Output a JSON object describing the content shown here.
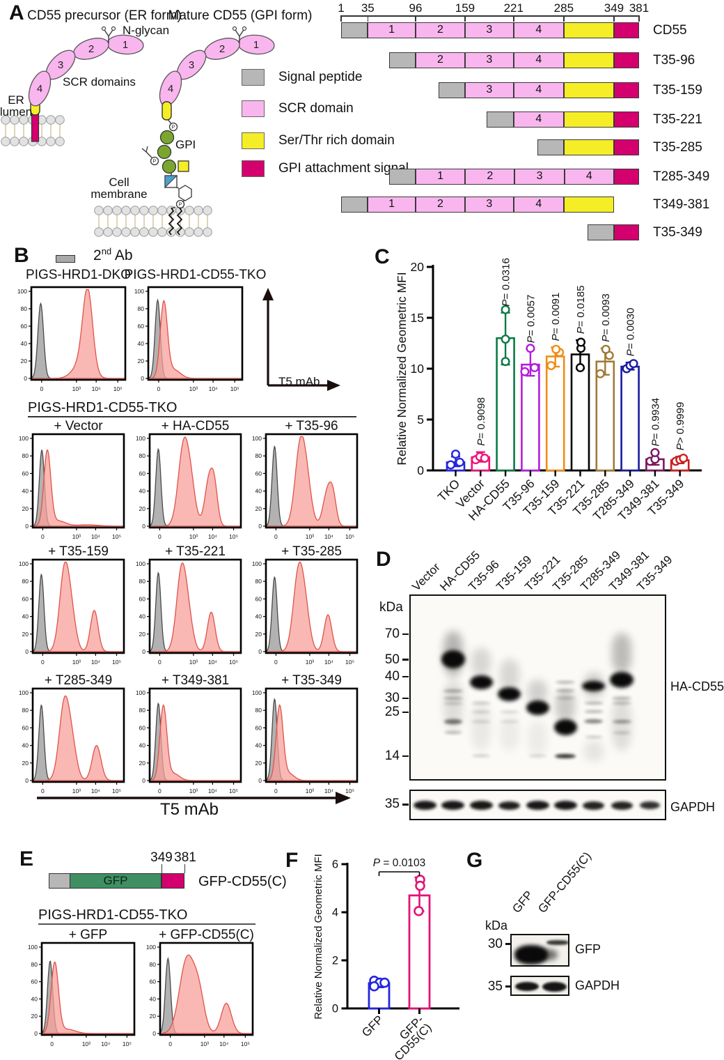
{
  "panels": {
    "a": "A",
    "b": "B",
    "c": "C",
    "d": "D",
    "e": "E",
    "f": "F",
    "g": "G"
  },
  "colors": {
    "signal_peptide": "#b7b7b7",
    "scr_domain": "#f9b6ee",
    "ser_thr": "#f5ee27",
    "gpi_signal": "#d4006e",
    "gfp_green": "#3f8f63",
    "hist_gray_fill": "#a9a9a9",
    "hist_gray_stroke": "#4a4a4a",
    "hist_red_fill": "#f8ab a4",
    "hist_red_fill2": "rgba(247,160,153,0.78)",
    "hist_red_stroke": "#e0524a"
  },
  "panel_a": {
    "title_er": "CD55 precursor (ER form)",
    "title_gpi": "Mature CD55 (GPI form)",
    "n_glycan": "N-glycan",
    "scr_domains": "SCR domains",
    "er_lumen_1": "ER",
    "er_lumen_2": "lumen",
    "gpi_label": "GPI",
    "cell_membrane_1": "Cell",
    "cell_membrane_2": "membrane",
    "scr_numbers": [
      "1",
      "2",
      "3",
      "4"
    ],
    "legend": [
      {
        "label": "Signal peptide",
        "color": "#b7b7b7"
      },
      {
        "label": "SCR domain",
        "color": "#f9b6ee"
      },
      {
        "label": "Ser/Thr rich domain",
        "color": "#f5ee27"
      },
      {
        "label": "GPI attachment signal",
        "color": "#d4006e"
      }
    ],
    "ruler": {
      "min": 1,
      "max": 381,
      "ticks": [
        1,
        35,
        96,
        159,
        221,
        285,
        349,
        381
      ]
    },
    "constructs": [
      {
        "name": "CD55",
        "segments": [
          [
            1,
            35,
            "sp"
          ],
          [
            35,
            96,
            "scr",
            "1"
          ],
          [
            96,
            159,
            "scr",
            "2"
          ],
          [
            159,
            221,
            "scr",
            "3"
          ],
          [
            221,
            285,
            "scr",
            "4"
          ],
          [
            285,
            349,
            "st"
          ],
          [
            349,
            381,
            "gpi"
          ]
        ]
      },
      {
        "name": "T35-96",
        "segments": [
          [
            62,
            96,
            "sp"
          ],
          [
            96,
            159,
            "scr",
            "2"
          ],
          [
            159,
            221,
            "scr",
            "3"
          ],
          [
            221,
            285,
            "scr",
            "4"
          ],
          [
            285,
            349,
            "st"
          ],
          [
            349,
            381,
            "gpi"
          ]
        ]
      },
      {
        "name": "T35-159",
        "segments": [
          [
            125,
            159,
            "sp"
          ],
          [
            159,
            221,
            "scr",
            "3"
          ],
          [
            221,
            285,
            "scr",
            "4"
          ],
          [
            285,
            349,
            "st"
          ],
          [
            349,
            381,
            "gpi"
          ]
        ]
      },
      {
        "name": "T35-221",
        "segments": [
          [
            187,
            221,
            "sp"
          ],
          [
            221,
            285,
            "scr",
            "4"
          ],
          [
            285,
            349,
            "st"
          ],
          [
            349,
            381,
            "gpi"
          ]
        ]
      },
      {
        "name": "T35-285",
        "segments": [
          [
            251,
            285,
            "sp"
          ],
          [
            285,
            349,
            "st"
          ],
          [
            349,
            381,
            "gpi"
          ]
        ]
      },
      {
        "name": "T285-349",
        "segments": [
          [
            62,
            96,
            "sp"
          ],
          [
            96,
            159.2,
            "scr",
            "1"
          ],
          [
            159.2,
            222.5,
            "scr",
            "2"
          ],
          [
            222.5,
            285.8,
            "scr",
            "3"
          ],
          [
            285.8,
            349,
            "scr",
            "4"
          ],
          [
            349,
            381,
            "gpi"
          ]
        ]
      },
      {
        "name": "T349-381",
        "segments": [
          [
            1,
            35,
            "sp"
          ],
          [
            35,
            96,
            "scr",
            "1"
          ],
          [
            96,
            159,
            "scr",
            "2"
          ],
          [
            159,
            221,
            "scr",
            "3"
          ],
          [
            221,
            285,
            "scr",
            "4"
          ],
          [
            285,
            349,
            "st"
          ]
        ]
      },
      {
        "name": "T35-349",
        "segments": [
          [
            315,
            349,
            "sp"
          ],
          [
            349,
            381,
            "gpi"
          ]
        ]
      }
    ]
  },
  "panel_b": {
    "legend": {
      "num": "2",
      "sup": "nd",
      "rest": " Ab"
    },
    "grid_header": "PIGS-HRD1-CD55-TKO",
    "axis_label": "T5 mAb",
    "bottom_axis_label": "T5 mAb",
    "yticks": [
      "100",
      "80",
      "60",
      "40",
      "20",
      "0"
    ],
    "xticks": [
      "0",
      "10³",
      "10⁴",
      "10⁵"
    ]
  },
  "panel_d": {
    "kda": "kDa",
    "markers": [
      70,
      50,
      40,
      30,
      25,
      14
    ],
    "gapdh_marker": "35",
    "lanes": [
      "Vector",
      "HA-CD55",
      "T35-96",
      "T35-159",
      "T35-221",
      "T35-285",
      "T285-349",
      "T349-381",
      "T35-349"
    ],
    "blot_label": "HA-CD55",
    "gapdh_label": "GAPDH",
    "bands": [
      [],
      [
        [
          50,
          26,
          1,
          34
        ],
        [
          33,
          5,
          0.3,
          28
        ],
        [
          30,
          4,
          0.3,
          28
        ],
        [
          28,
          3,
          0.25,
          28
        ],
        [
          22,
          7,
          0.55,
          26
        ],
        [
          19,
          4,
          0.3,
          26
        ]
      ],
      [
        [
          37,
          20,
          1,
          33
        ],
        [
          28,
          4,
          0.2,
          28
        ],
        [
          25,
          3,
          0.2,
          28
        ],
        [
          22,
          3,
          0.2,
          28
        ],
        [
          14,
          3,
          0.25,
          26
        ]
      ],
      [
        [
          31.5,
          20,
          1,
          33
        ],
        [
          25,
          3,
          0.2,
          28
        ],
        [
          22,
          3,
          0.15,
          28
        ]
      ],
      [
        [
          26.5,
          21,
          1,
          33
        ],
        [
          14,
          3,
          0.2,
          26
        ]
      ],
      [
        [
          20.5,
          23,
          1,
          33
        ],
        [
          14,
          6,
          0.85,
          30
        ],
        [
          37,
          4,
          0.3,
          28
        ],
        [
          33,
          4,
          0.3,
          28
        ],
        [
          30,
          3,
          0.25,
          28
        ]
      ],
      [
        [
          35,
          15,
          1,
          33
        ],
        [
          28,
          4,
          0.3,
          28
        ],
        [
          25,
          4,
          0.3,
          28
        ],
        [
          22,
          6,
          0.5,
          27
        ],
        [
          18,
          3,
          0.25,
          26
        ]
      ],
      [
        [
          38,
          23,
          1,
          34
        ],
        [
          30,
          4,
          0.3,
          28
        ],
        [
          28,
          4,
          0.25,
          28
        ],
        [
          22,
          5,
          0.4,
          27
        ],
        [
          19,
          3,
          0.25,
          26
        ]
      ],
      []
    ],
    "smears": [
      [],
      [
        [
          72,
          40,
          0.5
        ],
        [
          38,
          20,
          0.2
        ]
      ],
      [
        [
          58,
          40,
          0.25
        ],
        [
          28,
          15,
          0.12
        ]
      ],
      [
        [
          50,
          33,
          0.25
        ],
        [
          24,
          15,
          0.1
        ]
      ],
      [
        [
          38,
          28,
          0.3
        ],
        [
          22,
          14,
          0.1
        ]
      ],
      [
        [
          33,
          22,
          0.35
        ]
      ],
      [
        [
          42,
          30,
          0.3
        ],
        [
          17,
          13,
          0.15
        ]
      ],
      [
        [
          70,
          42,
          0.45
        ],
        [
          30,
          15,
          0.2
        ]
      ],
      []
    ],
    "gapdh_bands": [
      [
        33,
        13,
        0.95
      ],
      [
        33,
        13,
        0.95
      ],
      [
        33,
        13,
        0.95
      ],
      [
        31,
        12,
        0.92
      ],
      [
        33,
        13,
        0.95
      ],
      [
        33,
        13,
        0.95
      ],
      [
        31,
        12,
        0.9
      ],
      [
        31,
        12,
        0.9
      ],
      [
        29,
        11,
        0.85
      ]
    ]
  },
  "panel_e": {
    "pos_349": "349",
    "pos_381": "381",
    "gfp": "GFP",
    "construct_name": "GFP-CD55(C)",
    "header": "PIGS-HRD1-CD55-TKO"
  },
  "panel_g": {
    "kda": "kDa",
    "marker_gfp": "30",
    "marker_gapdh": "35",
    "lanes": [
      "GFP",
      "GFP-CD55(C)"
    ],
    "blot_labels": [
      "GFP",
      "GAPDH"
    ],
    "gfp_bands": [
      [
        4,
        14,
        48,
        28,
        1,
        3
      ],
      [
        38,
        20,
        28,
        16,
        0.55,
        4
      ],
      [
        50,
        7,
        32,
        7,
        0.8,
        1.5
      ]
    ],
    "gapdh_bands": [
      [
        5,
        7,
        34,
        13,
        0.95,
        1.5
      ],
      [
        44,
        7,
        35,
        14,
        0.95,
        1.5
      ]
    ]
  },
  "chart_data": [
    {
      "id": "panel_c",
      "type": "bar",
      "ylabel": "Relative Normalized Geometric MFI",
      "ylim": [
        0,
        20
      ],
      "yticks": [
        0,
        5,
        10,
        15,
        20
      ],
      "categories": [
        "TKO",
        "Vector",
        "HA-CD55",
        "T35-96",
        "T35-159",
        "T35-221",
        "T35-285",
        "T285-349",
        "T349-381",
        "T35-349"
      ],
      "values": [
        0.8,
        1.3,
        13.0,
        10.4,
        11.2,
        11.4,
        10.7,
        10.2,
        1.1,
        1.0
      ],
      "errors_low": [
        0.4,
        0.85,
        10.4,
        9.3,
        10.2,
        10.0,
        9.4,
        9.9,
        0.55,
        0.7
      ],
      "errors_high": [
        1.35,
        1.8,
        15.5,
        11.9,
        12.1,
        12.8,
        12.0,
        10.6,
        1.75,
        1.35
      ],
      "points": [
        [
          0.55,
          0.8,
          1.6
        ],
        [
          1.05,
          1.35,
          1.2
        ],
        [
          10.7,
          12.9,
          15.8
        ],
        [
          9.7,
          10.1,
          12.0
        ],
        [
          10.3,
          11.6,
          11.9
        ],
        [
          10.1,
          12.0,
          12.6
        ],
        [
          9.5,
          11.3,
          11.9
        ],
        [
          10.0,
          10.3,
          10.5
        ],
        [
          0.9,
          1.1,
          1.75
        ],
        [
          0.9,
          1.05,
          1.2
        ]
      ],
      "p_values": [
        null,
        "P= 0.9098",
        "P= 0.0316",
        "P= 0.0057",
        "P= 0.0091",
        "P= 0.0185",
        "P= 0.0093",
        "P= 0.0030",
        "P= 0.9934",
        "P> 0.9999"
      ],
      "colors": [
        "#2525dd",
        "#ee1179",
        "#0b7a44",
        "#b21ddb",
        "#f08c16",
        "#000000",
        "#a07a35",
        "#1b1b9e",
        "#7a1464",
        "#cc1d1d"
      ]
    },
    {
      "id": "panel_f",
      "type": "bar",
      "ylabel": "Relative Normalized Geometric MFI",
      "ylim": [
        0,
        6
      ],
      "yticks": [
        0,
        2,
        4,
        6
      ],
      "categories": [
        "GFP",
        "GFP-CD55(C)"
      ],
      "category_lines": [
        [
          "GFP"
        ],
        [
          "GFP-",
          "CD55(C)"
        ]
      ],
      "values": [
        1.05,
        4.7
      ],
      "errors_low": [
        0.88,
        4.05
      ],
      "errors_high": [
        1.22,
        5.45
      ],
      "points": [
        [
          1.15,
          1.07,
          1.07,
          0.92
        ],
        [
          5.35,
          5.1,
          4.05
        ]
      ],
      "p_label": "P = 0.0103",
      "colors": [
        "#2525dd",
        "#e31279"
      ]
    },
    {
      "id": "flow_histograms",
      "type": "area",
      "xlabel": "T5 mAb",
      "ylim": [
        0,
        100
      ],
      "plots": [
        {
          "title": "PIGS-HRD1-DKO",
          "gray": [
            [
              0.1,
              0.03,
              0.86
            ]
          ],
          "red": [
            [
              0.6,
              0.052,
              0.9
            ],
            [
              0.54,
              0.09,
              0.18
            ]
          ]
        },
        {
          "title": "PIGS-HRD1-CD55-TKO",
          "gray": [
            [
              0.1,
              0.028,
              0.9
            ]
          ],
          "red": [
            [
              0.165,
              0.038,
              0.86
            ],
            [
              0.27,
              0.07,
              0.1
            ]
          ]
        },
        {
          "title": "+ Vector",
          "gray": [
            [
              0.1,
              0.028,
              0.87
            ]
          ],
          "red": [
            [
              0.16,
              0.038,
              0.85
            ],
            [
              0.28,
              0.08,
              0.06
            ],
            [
              0.6,
              0.12,
              0.015
            ]
          ]
        },
        {
          "title": "+ HA-CD55",
          "gray": [
            [
              0.095,
              0.028,
              0.88
            ]
          ],
          "red": [
            [
              0.375,
              0.06,
              0.93
            ],
            [
              0.46,
              0.05,
              0.3
            ],
            [
              0.655,
              0.048,
              0.55
            ],
            [
              0.715,
              0.035,
              0.3
            ]
          ]
        },
        {
          "title": "+ T35-96",
          "gray": [
            [
              0.095,
              0.028,
              0.91
            ]
          ],
          "red": [
            [
              0.38,
              0.058,
              0.94
            ],
            [
              0.46,
              0.05,
              0.3
            ],
            [
              0.68,
              0.05,
              0.42
            ],
            [
              0.74,
              0.035,
              0.22
            ]
          ]
        },
        {
          "title": "+ T35-159",
          "gray": [
            [
              0.095,
              0.028,
              0.88
            ]
          ],
          "red": [
            [
              0.35,
              0.055,
              0.93
            ],
            [
              0.43,
              0.05,
              0.3
            ],
            [
              0.675,
              0.042,
              0.47
            ]
          ]
        },
        {
          "title": "+ T35-221",
          "gray": [
            [
              0.095,
              0.028,
              0.9
            ]
          ],
          "red": [
            [
              0.35,
              0.055,
              0.92
            ],
            [
              0.43,
              0.05,
              0.28
            ],
            [
              0.675,
              0.042,
              0.45
            ]
          ]
        },
        {
          "title": "+ T35-285",
          "gray": [
            [
              0.095,
              0.028,
              0.85
            ]
          ],
          "red": [
            [
              0.36,
              0.058,
              0.92
            ],
            [
              0.44,
              0.05,
              0.3
            ],
            [
              0.68,
              0.042,
              0.42
            ]
          ]
        },
        {
          "title": "+ T285-349",
          "gray": [
            [
              0.095,
              0.028,
              0.86
            ]
          ],
          "red": [
            [
              0.35,
              0.058,
              0.9
            ],
            [
              0.44,
              0.05,
              0.28
            ],
            [
              0.7,
              0.048,
              0.4
            ]
          ]
        },
        {
          "title": "+ T349-381",
          "gray": [
            [
              0.095,
              0.028,
              0.88
            ]
          ],
          "red": [
            [
              0.15,
              0.038,
              0.84
            ],
            [
              0.26,
              0.065,
              0.08
            ]
          ]
        },
        {
          "title": "+ T35-349",
          "gray": [
            [
              0.095,
              0.028,
              0.93
            ]
          ],
          "red": [
            [
              0.15,
              0.038,
              0.84
            ],
            [
              0.25,
              0.06,
              0.08
            ]
          ]
        },
        {
          "title": "+ GFP",
          "gray": [
            [
              0.09,
              0.028,
              0.84
            ]
          ],
          "red": [
            [
              0.14,
              0.04,
              0.81
            ],
            [
              0.27,
              0.09,
              0.05
            ]
          ]
        },
        {
          "title": "+ GFP-CD55(C)",
          "gray": [
            [
              0.085,
              0.028,
              0.87
            ]
          ],
          "red": [
            [
              0.29,
              0.08,
              0.86
            ],
            [
              0.42,
              0.06,
              0.4
            ],
            [
              0.715,
              0.055,
              0.35
            ]
          ]
        }
      ]
    }
  ]
}
